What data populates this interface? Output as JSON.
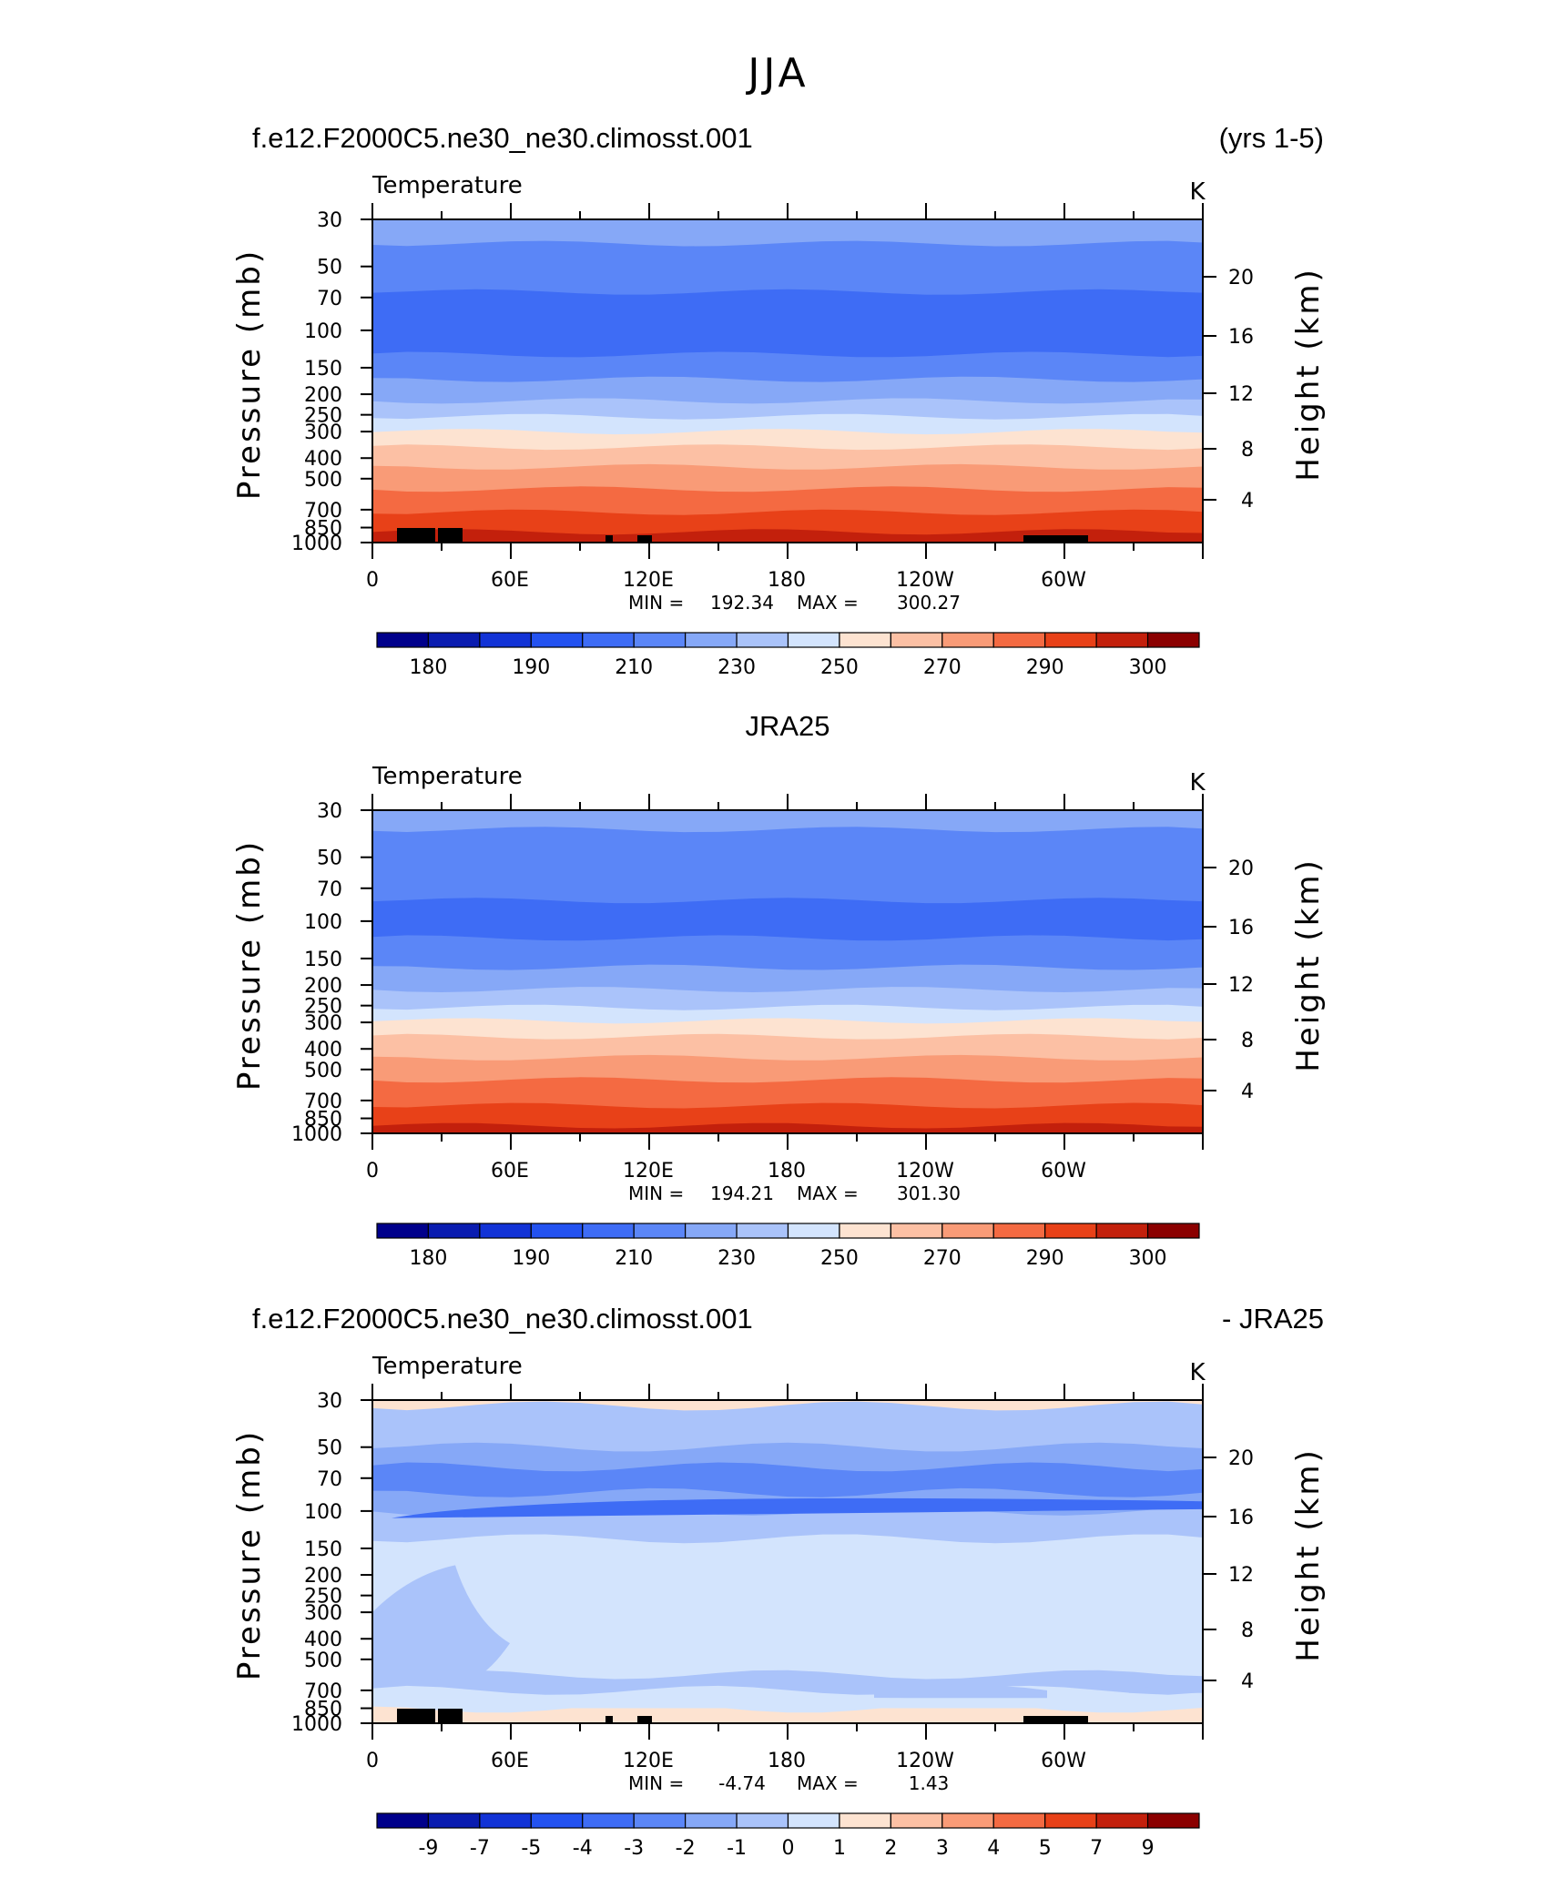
{
  "page": {
    "season_title": "JJA"
  },
  "panels": [
    {
      "left_header": "f.e12.F2000C5.ne30_ne30.climosst.001",
      "center_header": "",
      "right_header": "(yrs 1-5)",
      "var_label": "Temperature",
      "units": "K",
      "ylabel": "Pressure (mb)",
      "ylabel_right": "Height (km)",
      "stats": {
        "min_label": "MIN =",
        "min": "192.34",
        "max_label": "MAX =",
        "max": "300.27"
      }
    },
    {
      "left_header": "",
      "center_header": "JRA25",
      "right_header": "",
      "var_label": "Temperature",
      "units": "K",
      "ylabel": "Pressure (mb)",
      "ylabel_right": "Height (km)",
      "stats": {
        "min_label": "MIN =",
        "min": "194.21",
        "max_label": "MAX =",
        "max": "301.30"
      }
    },
    {
      "left_header": "f.e12.F2000C5.ne30_ne30.climosst.001",
      "center_header": "",
      "right_header": "- JRA25",
      "var_label": "Temperature",
      "units": "K",
      "ylabel": "Pressure (mb)",
      "ylabel_right": "Height (km)",
      "stats": {
        "min_label": "MIN =",
        "min": "-4.74",
        "max_label": "MAX =",
        "max": "1.43"
      }
    }
  ],
  "chart_data": [
    {
      "type": "heatmap",
      "plot": "filled contour, longitude-pressure",
      "title": "f.e12.F2000C5.ne30_ne30.climosst.001",
      "x_ticks": [
        "0",
        "60E",
        "120E",
        "180",
        "120W",
        "60W"
      ],
      "xlim": [
        0,
        360
      ],
      "y_ticks": [
        "30",
        "50",
        "70",
        "100",
        "150",
        "200",
        "250",
        "300",
        "400",
        "500",
        "700",
        "850",
        "1000"
      ],
      "ylim": [
        1000,
        30
      ],
      "y_scale": "log",
      "y_right_ticks": [
        "20",
        "16",
        "12",
        "8",
        "4"
      ],
      "colorbar_levels": [
        180,
        185,
        190,
        200,
        210,
        220,
        230,
        240,
        250,
        260,
        270,
        280,
        290,
        295,
        300
      ],
      "colorbar_labels": [
        "180",
        "190",
        "210",
        "230",
        "250",
        "270",
        "290",
        "300"
      ],
      "bands_by_pressure": [
        {
          "p_top": 30,
          "p_bottom": 39,
          "level": 220
        },
        {
          "p_top": 39,
          "p_bottom": 66,
          "level": 210
        },
        {
          "p_top": 66,
          "p_bottom": 130,
          "level": 200
        },
        {
          "p_top": 130,
          "p_bottom": 170,
          "level": 210
        },
        {
          "p_top": 170,
          "p_bottom": 215,
          "level": 220
        },
        {
          "p_top": 215,
          "p_bottom": 255,
          "level": 230
        },
        {
          "p_top": 255,
          "p_bottom": 300,
          "level": 240
        },
        {
          "p_top": 300,
          "p_bottom": 355,
          "level": 250
        },
        {
          "p_top": 355,
          "p_bottom": 440,
          "level": 260
        },
        {
          "p_top": 440,
          "p_bottom": 560,
          "level": 270
        },
        {
          "p_top": 560,
          "p_bottom": 720,
          "level": 280
        },
        {
          "p_top": 720,
          "p_bottom": 890,
          "level": 290
        },
        {
          "p_top": 890,
          "p_bottom": 1000,
          "level": 295
        }
      ]
    },
    {
      "type": "heatmap",
      "plot": "filled contour, longitude-pressure",
      "title": "JRA25",
      "x_ticks": [
        "0",
        "60E",
        "120E",
        "180",
        "120W",
        "60W"
      ],
      "xlim": [
        0,
        360
      ],
      "y_ticks": [
        "30",
        "50",
        "70",
        "100",
        "150",
        "200",
        "250",
        "300",
        "400",
        "500",
        "700",
        "850",
        "1000"
      ],
      "ylim": [
        1000,
        30
      ],
      "y_scale": "log",
      "y_right_ticks": [
        "20",
        "16",
        "12",
        "8",
        "4"
      ],
      "colorbar_levels": [
        180,
        185,
        190,
        200,
        210,
        220,
        230,
        240,
        250,
        260,
        270,
        280,
        290,
        295,
        300
      ],
      "colorbar_labels": [
        "180",
        "190",
        "210",
        "230",
        "250",
        "270",
        "290",
        "300"
      ],
      "bands_by_pressure": [
        {
          "p_top": 30,
          "p_bottom": 37,
          "level": 220
        },
        {
          "p_top": 37,
          "p_bottom": 80,
          "level": 210
        },
        {
          "p_top": 80,
          "p_bottom": 120,
          "level": 200
        },
        {
          "p_top": 120,
          "p_bottom": 165,
          "level": 210
        },
        {
          "p_top": 165,
          "p_bottom": 210,
          "level": 220
        },
        {
          "p_top": 210,
          "p_bottom": 255,
          "level": 230
        },
        {
          "p_top": 255,
          "p_bottom": 295,
          "level": 240
        },
        {
          "p_top": 295,
          "p_bottom": 350,
          "level": 250
        },
        {
          "p_top": 350,
          "p_bottom": 440,
          "level": 260
        },
        {
          "p_top": 440,
          "p_bottom": 560,
          "level": 270
        },
        {
          "p_top": 560,
          "p_bottom": 740,
          "level": 280
        },
        {
          "p_top": 740,
          "p_bottom": 920,
          "level": 290
        },
        {
          "p_top": 920,
          "p_bottom": 1000,
          "level": 295
        }
      ]
    },
    {
      "type": "heatmap",
      "plot": "filled contour, longitude-pressure (difference)",
      "title": "f.e12.F2000C5.ne30_ne30.climosst.001 - JRA25",
      "x_ticks": [
        "0",
        "60E",
        "120E",
        "180",
        "120W",
        "60W"
      ],
      "xlim": [
        0,
        360
      ],
      "y_ticks": [
        "30",
        "50",
        "70",
        "100",
        "150",
        "200",
        "250",
        "300",
        "400",
        "500",
        "700",
        "850",
        "1000"
      ],
      "ylim": [
        1000,
        30
      ],
      "y_scale": "log",
      "y_right_ticks": [
        "20",
        "16",
        "12",
        "8",
        "4"
      ],
      "colorbar_levels": [
        -9,
        -7,
        -5,
        -4,
        -3,
        -2,
        -1,
        0,
        1,
        2,
        3,
        4,
        5,
        7,
        9
      ],
      "colorbar_labels": [
        "-9",
        "-7",
        "-5",
        "-4",
        "-3",
        "-2",
        "-1",
        "0",
        "1",
        "2",
        "3",
        "4",
        "5",
        "7",
        "9"
      ],
      "bands_by_pressure": [
        {
          "p_top": 30,
          "p_bottom": 32,
          "level": 1
        },
        {
          "p_top": 32,
          "p_bottom": 50,
          "level": -1
        },
        {
          "p_top": 50,
          "p_bottom": 62,
          "level": -2
        },
        {
          "p_top": 62,
          "p_bottom": 82,
          "level": -3
        },
        {
          "p_top": 82,
          "p_bottom": 100,
          "level": -2
        },
        {
          "p_top": 100,
          "p_bottom": 135,
          "level": -1
        },
        {
          "p_top": 135,
          "p_bottom": 590,
          "level": 0
        },
        {
          "p_top": 590,
          "p_bottom": 700,
          "level": -1
        },
        {
          "p_top": 700,
          "p_bottom": 850,
          "level": 0
        },
        {
          "p_top": 850,
          "p_bottom": 1000,
          "level": 1
        }
      ]
    }
  ],
  "palette": {
    "colors": [
      "#00008b",
      "#0a1cb0",
      "#1233d6",
      "#2352f0",
      "#3e6cf5",
      "#5b86f7",
      "#86a8f7",
      "#aac3fa",
      "#d3e4fd",
      "#fde3d1",
      "#fcc0a4",
      "#f99b77",
      "#f46a42",
      "#e84118",
      "#c3200c",
      "#8b0000"
    ],
    "land": "#000000"
  }
}
